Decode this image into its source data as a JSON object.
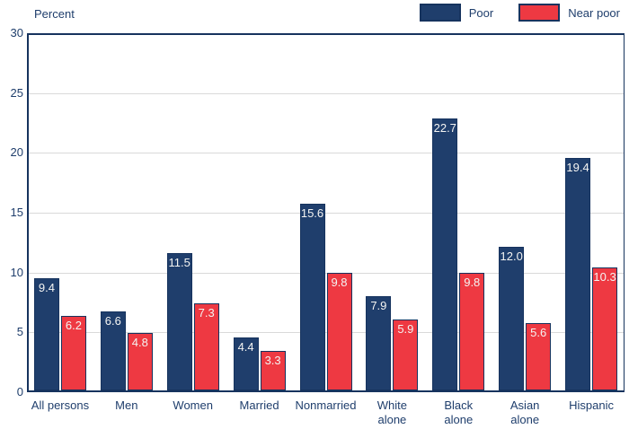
{
  "colors": {
    "navy": "#1f3e6c",
    "navy_dark": "#16335e",
    "red": "#ee3942",
    "text": "#1f3e6c",
    "gridline": "#d9d9d9",
    "value_label": "#f4f4f2",
    "background": "#ffffff"
  },
  "chart_data": {
    "type": "bar",
    "title": "",
    "ylabel": "Percent",
    "xlabel": "",
    "ylim": [
      0,
      30
    ],
    "yticks": [
      0,
      5,
      10,
      15,
      20,
      25,
      30
    ],
    "grid": true,
    "legend_position": "top-right",
    "categories": [
      "All persons",
      "Men",
      "Women",
      "Married",
      "Nonmarried",
      "White\nalone",
      "Black\nalone",
      "Asian\nalone",
      "Hispanic"
    ],
    "series": [
      {
        "name": "Poor",
        "color": "#1f3e6c",
        "values": [
          9.4,
          6.6,
          11.5,
          4.4,
          15.6,
          7.9,
          22.7,
          12.0,
          19.4
        ],
        "labels": [
          "9.4",
          "6.6",
          "11.5",
          "4.4",
          "15.6",
          "7.9",
          "22.7",
          "12.0",
          "19.4"
        ]
      },
      {
        "name": "Near poor",
        "color": "#ee3942",
        "values": [
          6.2,
          4.8,
          7.3,
          3.3,
          9.8,
          5.9,
          9.8,
          5.6,
          10.3
        ],
        "labels": [
          "6.2",
          "4.8",
          "7.3",
          "3.3",
          "9.8",
          "5.9",
          "9.8",
          "5.6",
          "10.3"
        ]
      }
    ]
  }
}
